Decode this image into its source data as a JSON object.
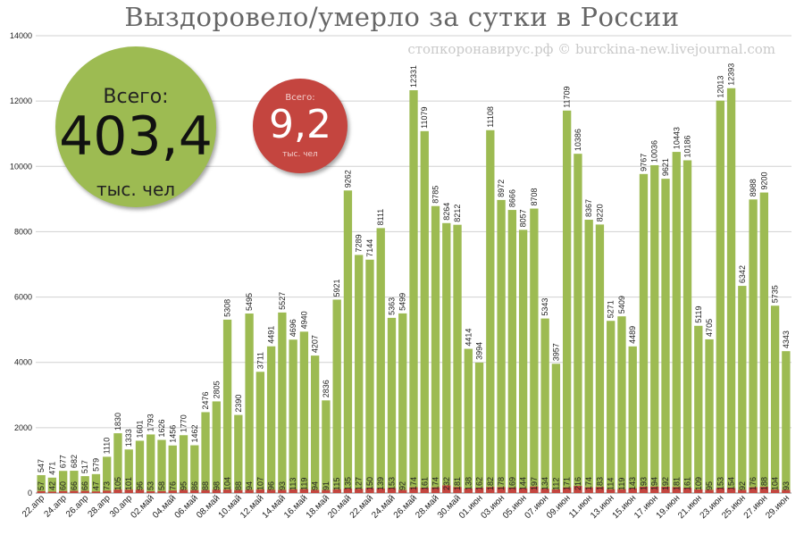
{
  "title": "Выздоровело/умерло за сутки в России",
  "source": "стопкоронавирус.рф © burckina-new.livejournal.com",
  "recovered_total": {
    "label": "Всего:",
    "value": "403,4",
    "unit": "тыс. чел"
  },
  "deaths_total": {
    "label": "Всего:",
    "value": "9,2",
    "unit": "тыс. чел"
  },
  "colors": {
    "recovered": "#9dbb52",
    "deaths": "#c4453f",
    "grid": "#d0d0d0"
  },
  "chart_data": {
    "type": "bar",
    "xlabel": "",
    "ylabel": "",
    "ylim": [
      0,
      14000
    ],
    "yticks": [
      "0",
      "2000",
      "4000",
      "6000",
      "8000",
      "10000",
      "12000",
      "14000"
    ],
    "grid": true,
    "stacked_overlay": true,
    "x_tick_labels": [
      "22.апр",
      "24.апр",
      "26.апр",
      "28.апр",
      "30.апр",
      "02.май",
      "04.май",
      "06.май",
      "08.май",
      "10.май",
      "12.май",
      "14.май",
      "16.май",
      "18.май",
      "20.май",
      "22.май",
      "24.май",
      "26.май",
      "28.май",
      "30.май",
      "01.июн",
      "03.июн",
      "05.июн",
      "07.июн",
      "09.июн",
      "11.июн",
      "13.июн",
      "15.июн",
      "17.июн",
      "19.июн",
      "21.июн",
      "23.июн",
      "25.июн",
      "27.июн",
      "29.июн"
    ],
    "series": [
      {
        "values": [
          547,
          471,
          677,
          682,
          517,
          579,
          1110,
          1830,
          1333,
          1601,
          1793,
          1626,
          1456,
          1770,
          1462,
          2476,
          2805,
          5308,
          2390,
          5495,
          3711,
          4491,
          5527,
          4696,
          4940,
          4207,
          2836,
          5921,
          9262,
          7289,
          7144,
          8111,
          5363,
          5499,
          12331,
          11079,
          8785,
          8264,
          8212,
          4414,
          3994,
          11108,
          8972,
          8666,
          8057,
          8708,
          5343,
          3957,
          11709,
          10386,
          8367,
          8220,
          5271,
          5409,
          4489,
          9767,
          10036,
          9621,
          10443,
          10186,
          5119,
          4705,
          12013,
          12393,
          6342,
          8988,
          9200,
          5735,
          4343
        ]
      },
      {
        "values": [
          57,
          42,
          60,
          66,
          66,
          47,
          73,
          105,
          101,
          96,
          53,
          58,
          76,
          95,
          86,
          88,
          98,
          104,
          88,
          94,
          107,
          96,
          93,
          113,
          119,
          94,
          91,
          115,
          135,
          127,
          150,
          139,
          153,
          92,
          174,
          161,
          174,
          232,
          181,
          138,
          162,
          182,
          178,
          169,
          144,
          197,
          134,
          112,
          171,
          216,
          174,
          183,
          114,
          119,
          143,
          193,
          194,
          192,
          181,
          161,
          109,
          95,
          153,
          154,
          92,
          176,
          188,
          104,
          93
        ]
      }
    ]
  }
}
